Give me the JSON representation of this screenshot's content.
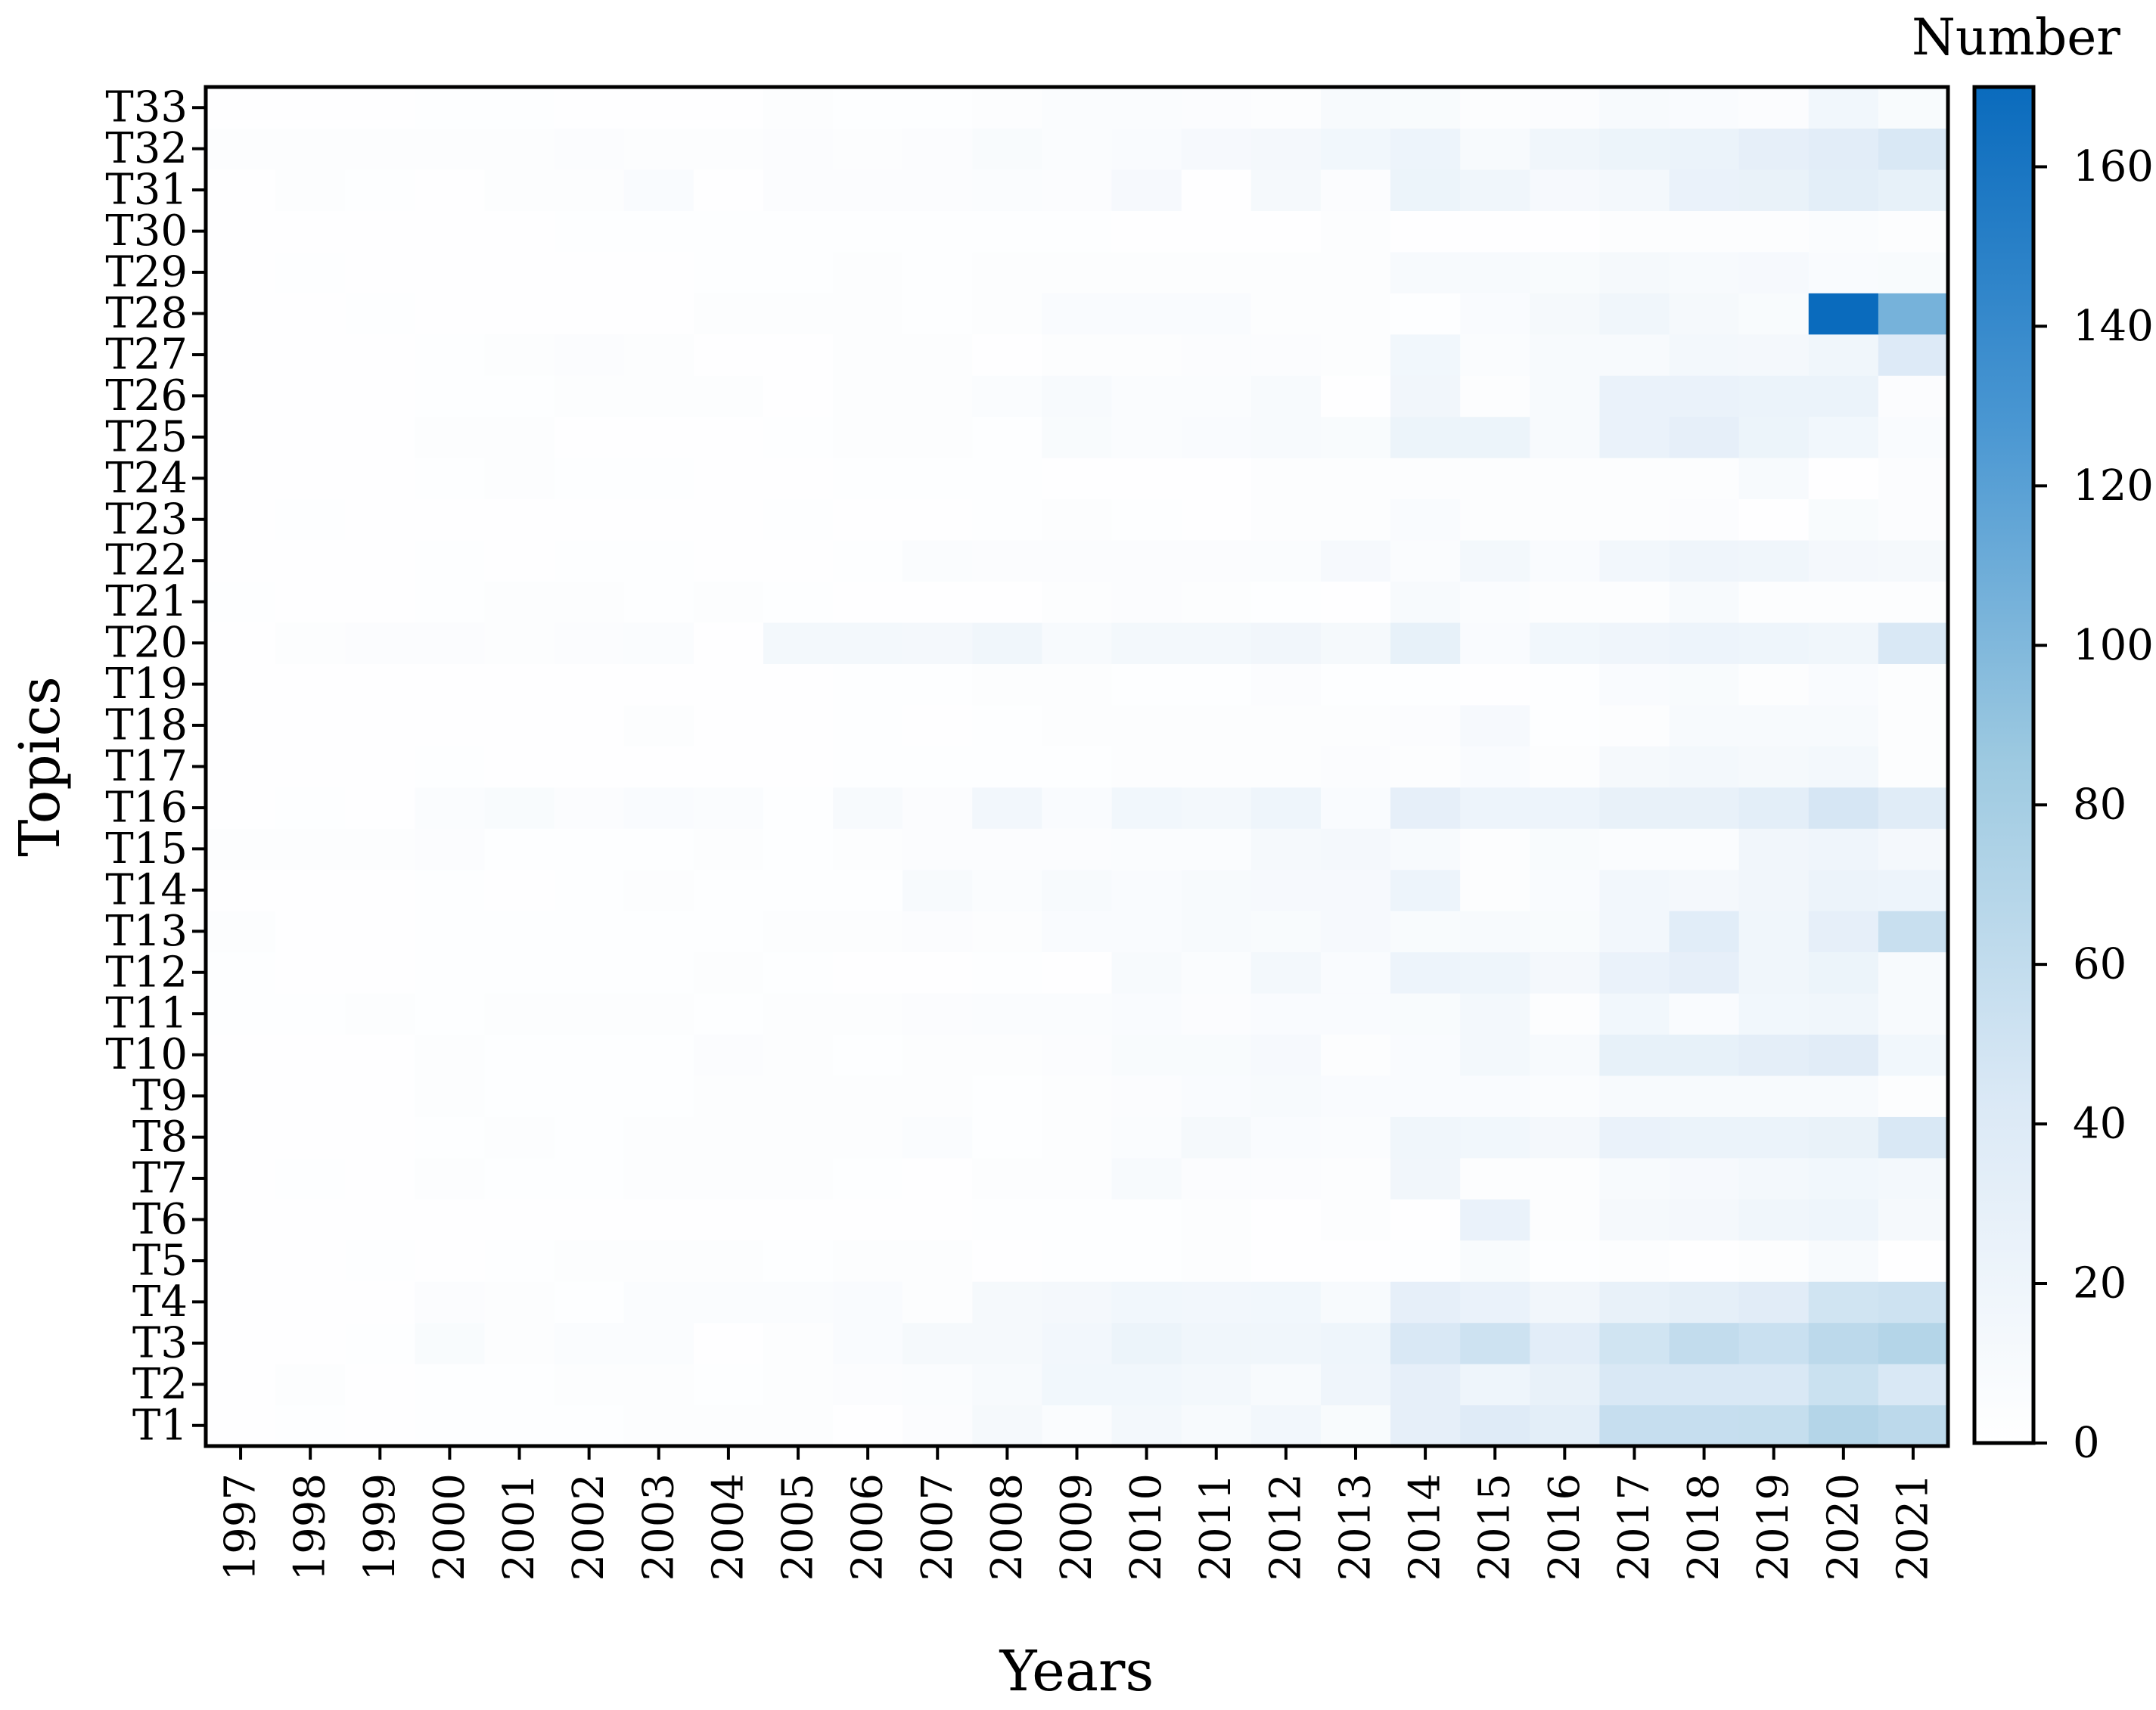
{
  "chart_data": {
    "type": "heatmap",
    "title": "",
    "xlabel": "Years",
    "ylabel": "Topics",
    "colorbar_label": "Number",
    "colorbar_ticks": [
      0,
      20,
      40,
      60,
      80,
      100,
      120,
      140,
      160
    ],
    "vmin": 0,
    "vmax": 170,
    "colormap": [
      "#ffffff",
      "#dbe9f6",
      "#9ecae1",
      "#4a97d2",
      "#0a6bbd"
    ],
    "x": [
      "1997",
      "1998",
      "1999",
      "2000",
      "2001",
      "2002",
      "2003",
      "2004",
      "2005",
      "2006",
      "2007",
      "2008",
      "2009",
      "2010",
      "2011",
      "2012",
      "2013",
      "2014",
      "2015",
      "2016",
      "2017",
      "2018",
      "2019",
      "2020",
      "2021"
    ],
    "y": [
      "T1",
      "T2",
      "T3",
      "T4",
      "T5",
      "T6",
      "T7",
      "T8",
      "T9",
      "T10",
      "T11",
      "T12",
      "T13",
      "T14",
      "T15",
      "T16",
      "T17",
      "T18",
      "T19",
      "T20",
      "T21",
      "T22",
      "T23",
      "T24",
      "T25",
      "T26",
      "T27",
      "T28",
      "T29",
      "T30",
      "T31",
      "T32",
      "T33"
    ],
    "values": [
      [
        1,
        2,
        1,
        2,
        2,
        2,
        3,
        3,
        3,
        1,
        5,
        12,
        6,
        14,
        10,
        15,
        8,
        30,
        38,
        33,
        57,
        57,
        58,
        70,
        64
      ],
      [
        1,
        3,
        1,
        2,
        2,
        3,
        3,
        2,
        3,
        5,
        6,
        9,
        16,
        16,
        14,
        10,
        19,
        30,
        20,
        27,
        44,
        44,
        44,
        54,
        44
      ],
      [
        1,
        1,
        2,
        8,
        4,
        6,
        6,
        1,
        4,
        7,
        12,
        12,
        15,
        22,
        18,
        18,
        20,
        44,
        52,
        34,
        50,
        60,
        55,
        64,
        70
      ],
      [
        1,
        1,
        1,
        5,
        4,
        2,
        6,
        6,
        6,
        7,
        3,
        12,
        13,
        16,
        15,
        16,
        9,
        30,
        25,
        17,
        27,
        31,
        36,
        50,
        52
      ],
      [
        1,
        1,
        2,
        1,
        2,
        3,
        3,
        3,
        2,
        3,
        3,
        1,
        2,
        2,
        3,
        1,
        1,
        2,
        8,
        2,
        3,
        1,
        3,
        10,
        1
      ],
      [
        1,
        1,
        1,
        1,
        1,
        1,
        1,
        1,
        1,
        1,
        1,
        2,
        2,
        2,
        3,
        1,
        3,
        1,
        25,
        4,
        12,
        13,
        18,
        20,
        12
      ],
      [
        1,
        2,
        1,
        3,
        2,
        2,
        4,
        4,
        4,
        2,
        1,
        3,
        3,
        9,
        5,
        5,
        4,
        17,
        4,
        4,
        9,
        11,
        14,
        16,
        14
      ],
      [
        1,
        1,
        1,
        2,
        3,
        2,
        3,
        3,
        3,
        3,
        6,
        2,
        4,
        6,
        12,
        7,
        6,
        18,
        16,
        13,
        25,
        24,
        24,
        26,
        44
      ],
      [
        1,
        1,
        1,
        3,
        2,
        2,
        2,
        3,
        3,
        3,
        3,
        2,
        3,
        5,
        7,
        10,
        7,
        7,
        7,
        6,
        10,
        9,
        9,
        10,
        3
      ],
      [
        1,
        1,
        1,
        4,
        2,
        2,
        2,
        5,
        3,
        2,
        4,
        3,
        5,
        8,
        8,
        11,
        3,
        7,
        14,
        9,
        28,
        28,
        32,
        36,
        16
      ],
      [
        2,
        2,
        3,
        2,
        3,
        3,
        3,
        2,
        3,
        4,
        5,
        6,
        6,
        7,
        5,
        7,
        7,
        8,
        14,
        3,
        16,
        7,
        16,
        18,
        10
      ],
      [
        2,
        1,
        1,
        2,
        2,
        2,
        2,
        3,
        2,
        1,
        1,
        2,
        1,
        10,
        6,
        14,
        7,
        21,
        20,
        13,
        25,
        30,
        18,
        22,
        9
      ],
      [
        3,
        1,
        1,
        2,
        2,
        2,
        2,
        2,
        4,
        3,
        5,
        4,
        7,
        7,
        9,
        8,
        11,
        8,
        10,
        8,
        15,
        35,
        18,
        30,
        56
      ],
      [
        1,
        1,
        1,
        2,
        1,
        2,
        3,
        2,
        2,
        2,
        10,
        6,
        9,
        7,
        10,
        11,
        11,
        21,
        4,
        7,
        15,
        13,
        17,
        23,
        21
      ],
      [
        3,
        3,
        3,
        5,
        2,
        2,
        2,
        4,
        2,
        4,
        5,
        5,
        5,
        6,
        6,
        12,
        13,
        10,
        3,
        8,
        6,
        6,
        17,
        19,
        13
      ],
      [
        1,
        2,
        1,
        6,
        8,
        5,
        7,
        6,
        2,
        9,
        5,
        15,
        7,
        16,
        14,
        20,
        7,
        30,
        21,
        21,
        27,
        27,
        33,
        46,
        37
      ],
      [
        1,
        1,
        1,
        2,
        1,
        1,
        1,
        1,
        1,
        2,
        2,
        2,
        2,
        3,
        3,
        4,
        5,
        3,
        7,
        3,
        12,
        14,
        12,
        14,
        3
      ],
      [
        1,
        1,
        1,
        1,
        1,
        1,
        3,
        1,
        1,
        2,
        1,
        2,
        3,
        3,
        3,
        3,
        3,
        5,
        11,
        2,
        4,
        10,
        9,
        10,
        3
      ],
      [
        1,
        1,
        1,
        1,
        1,
        1,
        1,
        1,
        1,
        2,
        2,
        3,
        4,
        2,
        2,
        5,
        2,
        2,
        1,
        2,
        7,
        8,
        4,
        7,
        3
      ],
      [
        1,
        3,
        5,
        5,
        4,
        5,
        6,
        1,
        14,
        14,
        13,
        18,
        9,
        14,
        14,
        17,
        12,
        28,
        7,
        16,
        19,
        21,
        20,
        18,
        44
      ],
      [
        2,
        1,
        1,
        2,
        3,
        3,
        2,
        3,
        2,
        1,
        1,
        1,
        3,
        5,
        3,
        2,
        1,
        10,
        6,
        4,
        3,
        9,
        4,
        3,
        3
      ],
      [
        1,
        1,
        1,
        2,
        1,
        2,
        2,
        1,
        1,
        2,
        6,
        5,
        5,
        5,
        5,
        6,
        11,
        6,
        14,
        7,
        15,
        19,
        18,
        13,
        12
      ],
      [
        1,
        2,
        1,
        1,
        1,
        1,
        1,
        1,
        2,
        1,
        1,
        2,
        3,
        2,
        1,
        3,
        3,
        7,
        3,
        3,
        4,
        5,
        1,
        8,
        5
      ],
      [
        1,
        1,
        1,
        2,
        3,
        2,
        2,
        1,
        1,
        2,
        2,
        2,
        1,
        1,
        1,
        3,
        4,
        3,
        3,
        4,
        4,
        3,
        10,
        1,
        5
      ],
      [
        1,
        1,
        1,
        3,
        3,
        1,
        1,
        1,
        2,
        4,
        3,
        2,
        8,
        6,
        7,
        10,
        8,
        22,
        22,
        10,
        25,
        30,
        22,
        16,
        7
      ],
      [
        1,
        1,
        1,
        2,
        2,
        3,
        3,
        3,
        1,
        4,
        4,
        6,
        9,
        6,
        6,
        9,
        1,
        17,
        3,
        10,
        25,
        25,
        24,
        24,
        5
      ],
      [
        1,
        1,
        1,
        2,
        3,
        5,
        3,
        1,
        1,
        3,
        3,
        1,
        4,
        4,
        5,
        5,
        3,
        16,
        6,
        9,
        9,
        14,
        13,
        18,
        40
      ],
      [
        1,
        1,
        2,
        1,
        1,
        1,
        1,
        4,
        4,
        4,
        2,
        3,
        7,
        7,
        7,
        3,
        3,
        2,
        7,
        12,
        18,
        12,
        8,
        170,
        105
      ],
      [
        1,
        2,
        1,
        1,
        1,
        1,
        1,
        2,
        2,
        3,
        2,
        4,
        3,
        3,
        3,
        3,
        4,
        9,
        10,
        8,
        12,
        9,
        11,
        7,
        8
      ],
      [
        1,
        1,
        1,
        1,
        1,
        2,
        2,
        2,
        2,
        2,
        2,
        2,
        2,
        1,
        1,
        1,
        3,
        1,
        1,
        1,
        4,
        4,
        4,
        6,
        3
      ],
      [
        1,
        3,
        2,
        1,
        3,
        3,
        7,
        1,
        5,
        5,
        5,
        6,
        5,
        11,
        1,
        12,
        5,
        22,
        18,
        11,
        14,
        25,
        26,
        33,
        28
      ],
      [
        3,
        3,
        4,
        3,
        3,
        5,
        3,
        3,
        5,
        3,
        5,
        8,
        6,
        7,
        11,
        13,
        16,
        21,
        9,
        18,
        22,
        24,
        30,
        34,
        44
      ],
      [
        1,
        1,
        1,
        2,
        2,
        1,
        1,
        1,
        3,
        2,
        2,
        4,
        6,
        6,
        5,
        4,
        9,
        8,
        3,
        5,
        10,
        7,
        5,
        16,
        8
      ]
    ]
  }
}
